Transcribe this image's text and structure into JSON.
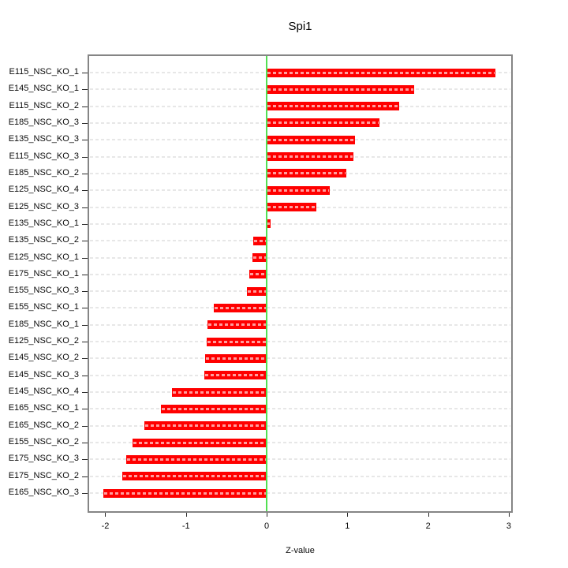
{
  "chart_data": {
    "type": "bar",
    "orientation": "horizontal",
    "title": "Spi1",
    "xlabel": "Z-value",
    "ylabel": "",
    "grid": true,
    "legend": "none",
    "xlim": [
      -2.2,
      3.03
    ],
    "xticks": [
      -2,
      -1,
      0,
      1,
      2,
      3
    ],
    "categories": [
      "E115_NSC_KO_1",
      "E145_NSC_KO_1",
      "E115_NSC_KO_2",
      "E185_NSC_KO_3",
      "E135_NSC_KO_3",
      "E115_NSC_KO_3",
      "E185_NSC_KO_2",
      "E125_NSC_KO_4",
      "E125_NSC_KO_3",
      "E135_NSC_KO_1",
      "E135_NSC_KO_2",
      "E125_NSC_KO_1",
      "E175_NSC_KO_1",
      "E155_NSC_KO_3",
      "E155_NSC_KO_1",
      "E185_NSC_KO_1",
      "E125_NSC_KO_2",
      "E145_NSC_KO_2",
      "E145_NSC_KO_3",
      "E145_NSC_KO_4",
      "E165_NSC_KO_1",
      "E165_NSC_KO_2",
      "E155_NSC_KO_2",
      "E175_NSC_KO_3",
      "E175_NSC_KO_2",
      "E165_NSC_KO_3"
    ],
    "values": [
      2.83,
      1.83,
      1.64,
      1.4,
      1.09,
      1.07,
      0.99,
      0.78,
      0.62,
      0.05,
      -0.17,
      -0.18,
      -0.22,
      -0.24,
      -0.66,
      -0.73,
      -0.74,
      -0.76,
      -0.77,
      -1.17,
      -1.31,
      -1.52,
      -1.66,
      -1.74,
      -1.79,
      -2.02
    ],
    "colors": {
      "bar": "#ff0000",
      "zero_line": "#52e052",
      "gridline": "#e7e7e7",
      "axis_text": "#0a0a0a",
      "box_border": "#858585",
      "background": "#ffffff"
    }
  }
}
